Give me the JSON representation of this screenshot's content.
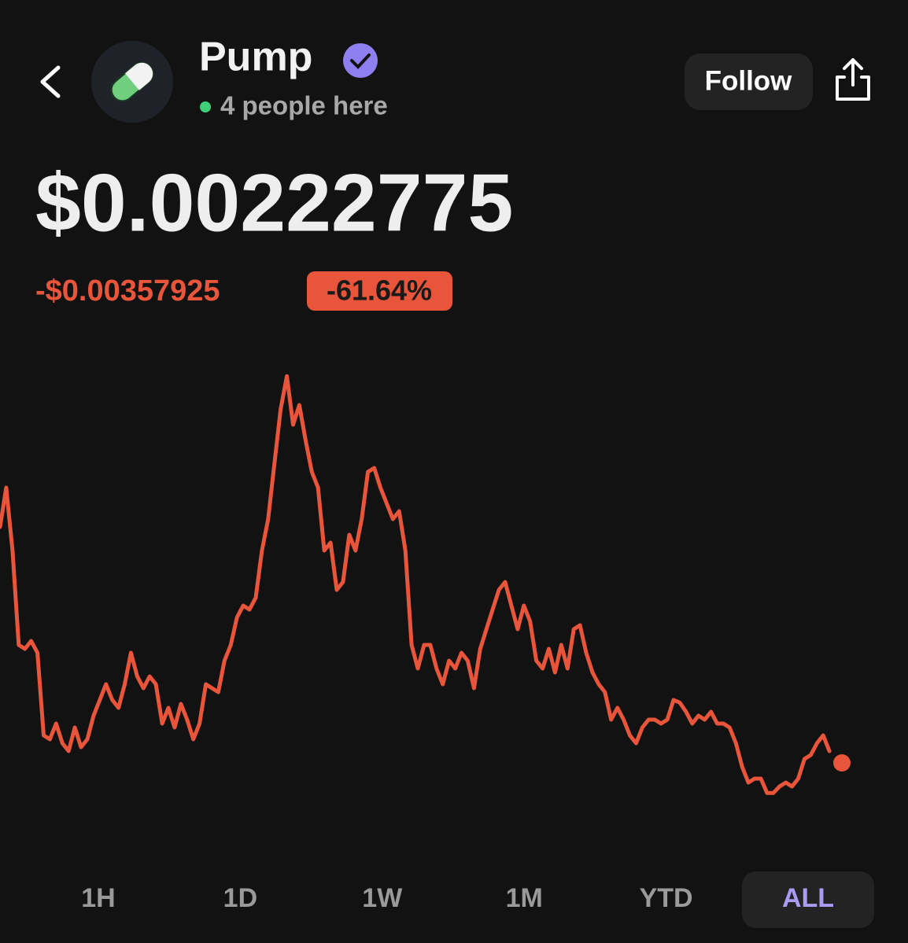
{
  "header": {
    "title": "Pump",
    "presence": "4 people here",
    "follow": "Follow"
  },
  "price": "$0.00222775",
  "change": "-$0.00357925",
  "change_percent": "-61.64%",
  "chart_data": {
    "type": "line",
    "color": "#e8553a",
    "ylim": [
      0.00091,
      0.00859
    ],
    "series": [
      {
        "name": null,
        "values": [
          0.00583,
          0.00643,
          0.00547,
          0.00403,
          0.00397,
          0.00409,
          0.00391,
          0.00265,
          0.00259,
          0.00283,
          0.00253,
          0.00241,
          0.00277,
          0.00247,
          0.00259,
          0.00295,
          0.00319,
          0.00343,
          0.00319,
          0.00307,
          0.00343,
          0.00391,
          0.00355,
          0.00337,
          0.00355,
          0.00343,
          0.00283,
          0.00307,
          0.00277,
          0.00313,
          0.00289,
          0.00259,
          0.00283,
          0.00343,
          0.00337,
          0.00331,
          0.00379,
          0.00403,
          0.00445,
          0.00463,
          0.00457,
          0.00475,
          0.00547,
          0.00595,
          0.00679,
          0.00763,
          0.00813,
          0.00739,
          0.00769,
          0.00715,
          0.00667,
          0.00643,
          0.00547,
          0.00559,
          0.00487,
          0.00499,
          0.00571,
          0.00547,
          0.00595,
          0.00667,
          0.00673,
          0.00643,
          0.00619,
          0.00595,
          0.00607,
          0.00547,
          0.00403,
          0.00367,
          0.00403,
          0.00403,
          0.00367,
          0.00343,
          0.00379,
          0.00367,
          0.00391,
          0.00379,
          0.00337,
          0.00397,
          0.00427,
          0.00457,
          0.00487,
          0.00499,
          0.00463,
          0.00427,
          0.00463,
          0.00439,
          0.00379,
          0.00367,
          0.00397,
          0.00361,
          0.00403,
          0.00367,
          0.00427,
          0.00433,
          0.00391,
          0.00361,
          0.00343,
          0.00331,
          0.00289,
          0.00307,
          0.00289,
          0.00265,
          0.00253,
          0.00277,
          0.00289,
          0.00289,
          0.00283,
          0.00289,
          0.00319,
          0.00315,
          0.00301,
          0.00283,
          0.00295,
          0.00289,
          0.00301,
          0.00283,
          0.00283,
          0.00277,
          0.00253,
          0.00217,
          0.00193,
          0.00199,
          0.00199,
          0.00177,
          0.00177,
          0.00187,
          0.00193,
          0.00187,
          0.00199,
          0.00229,
          0.00235,
          0.00253,
          0.00265,
          0.00241,
          null,
          0.00223
        ]
      }
    ]
  },
  "tabs": [
    "1H",
    "1D",
    "1W",
    "1M",
    "YTD",
    "ALL"
  ],
  "active_tab": 5
}
